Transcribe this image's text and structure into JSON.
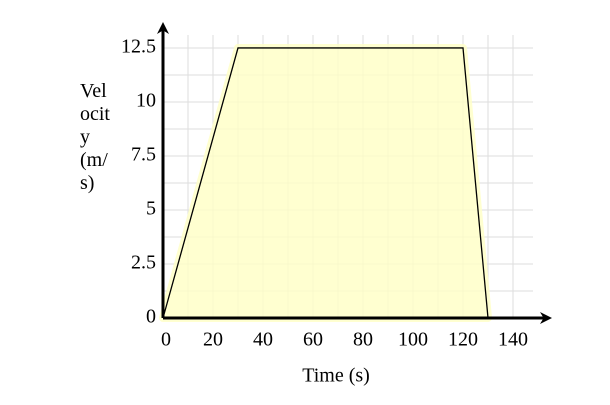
{
  "chart_data": {
    "type": "line",
    "x_label": "Time (s)",
    "y_label": "Velocity (m/s)",
    "x": [
      0,
      30,
      120,
      130
    ],
    "series": [
      {
        "values": [
          0,
          12.5,
          12.5,
          0
        ],
        "color": "#000000",
        "fill": "#ffffc8"
      }
    ],
    "xlim": [
      0,
      148
    ],
    "ylim": [
      0,
      13.1
    ],
    "xticks": [
      0,
      20,
      40,
      60,
      80,
      100,
      120,
      140
    ],
    "yticks": [
      0,
      2.5,
      5,
      7.5,
      10,
      12.5
    ],
    "grid": true,
    "grid_color": "#dddddd"
  }
}
